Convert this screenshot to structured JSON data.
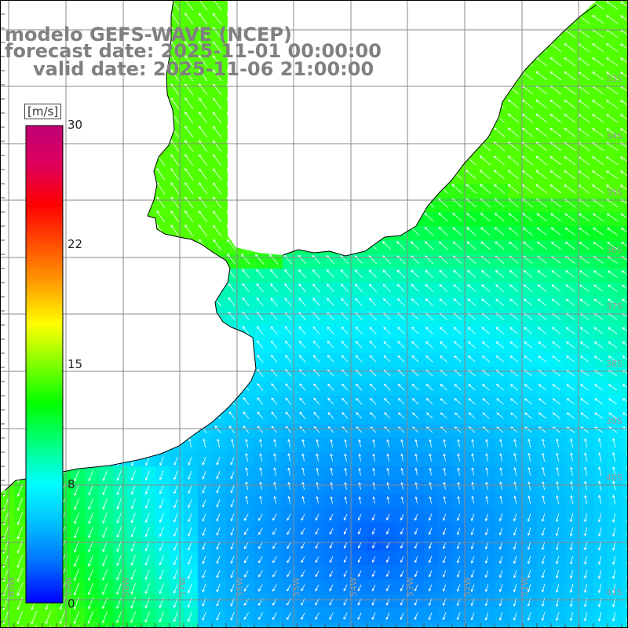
{
  "title": {
    "line1": "modelo GEFS-WAVE (NCEP)",
    "line2": "forecast date: 2025-11-01 00:00:00",
    "line3": "valid date: 2025-11-06 21:00:00"
  },
  "colorbar": {
    "unit": "[m/s]",
    "ticks": [
      {
        "label": "30",
        "value": 30
      },
      {
        "label": "22",
        "value": 22
      },
      {
        "label": "15",
        "value": 15
      },
      {
        "label": "8",
        "value": 8
      },
      {
        "label": "0",
        "value": 0
      }
    ],
    "colors": [
      "#0000ff",
      "#0070ff",
      "#00c0ff",
      "#00ffff",
      "#00ff80",
      "#00ff00",
      "#80ff00",
      "#ffff00",
      "#ffa000",
      "#ff5000",
      "#ff0000",
      "#e0005a",
      "#c00078"
    ]
  },
  "lon_labels": [
    "60W",
    "59W",
    "58W",
    "57W",
    "56W",
    "55W",
    "54W",
    "53W",
    "52W",
    "51W"
  ],
  "lat_labels": [
    "33S",
    "34S",
    "35S",
    "36S",
    "37S",
    "38S",
    "39S",
    "40S",
    "41S"
  ],
  "map_colors": {
    "land": "#ffffff",
    "coast": "#000000",
    "grid": "#8a8a8a",
    "arrow": "#ffffff"
  }
}
